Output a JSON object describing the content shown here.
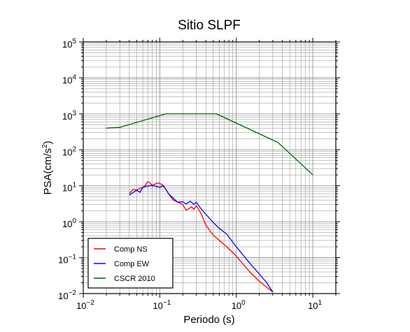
{
  "chart_data": {
    "type": "line",
    "title": "Sitio SLPF",
    "xlabel": "Periodo (s)",
    "ylabel_prefix": "PSA(cm/s",
    "ylabel_sup": "2",
    "ylabel_suffix": ")",
    "x_scale": "log",
    "y_scale": "log",
    "xlim": [
      0.01,
      20
    ],
    "ylim": [
      0.01,
      100000
    ],
    "grid": true,
    "legend_position": "bottom-left",
    "x_ticks": [
      {
        "value": 0.01,
        "base": "10",
        "exp": "−2"
      },
      {
        "value": 0.1,
        "base": "10",
        "exp": "−1"
      },
      {
        "value": 1,
        "base": "10",
        "exp": "0"
      },
      {
        "value": 10,
        "base": "10",
        "exp": "1"
      }
    ],
    "y_ticks": [
      {
        "value": 0.01,
        "base": "10",
        "exp": "−2"
      },
      {
        "value": 0.1,
        "base": "10",
        "exp": "−1"
      },
      {
        "value": 1,
        "base": "10",
        "exp": "0"
      },
      {
        "value": 10,
        "base": "10",
        "exp": "1"
      },
      {
        "value": 100,
        "base": "10",
        "exp": "2"
      },
      {
        "value": 1000,
        "base": "10",
        "exp": "3"
      },
      {
        "value": 10000,
        "base": "10",
        "exp": "4"
      },
      {
        "value": 100000,
        "base": "10",
        "exp": "5"
      }
    ],
    "series": [
      {
        "name": "Comp NS",
        "color": "#ff0000",
        "x": [
          0.04,
          0.045,
          0.05,
          0.055,
          0.06,
          0.065,
          0.07,
          0.075,
          0.08,
          0.085,
          0.09,
          0.095,
          0.1,
          0.11,
          0.12,
          0.13,
          0.15,
          0.17,
          0.19,
          0.2,
          0.22,
          0.24,
          0.26,
          0.28,
          0.3,
          0.35,
          0.4,
          0.5,
          0.6,
          0.75,
          1.0,
          1.5,
          2.0,
          2.5,
          3.0
        ],
        "y": [
          6.0,
          8.0,
          7.5,
          8.5,
          9.0,
          10.5,
          13.0,
          12.0,
          9.5,
          11.0,
          11.5,
          12.0,
          11.5,
          10.5,
          8.0,
          6.0,
          4.0,
          3.5,
          3.2,
          3.0,
          2.1,
          2.3,
          2.6,
          2.2,
          2.8,
          1.6,
          0.8,
          0.42,
          0.3,
          0.2,
          0.11,
          0.04,
          0.022,
          0.015,
          0.011
        ]
      },
      {
        "name": "Comp EW",
        "color": "#0000ff",
        "x": [
          0.04,
          0.045,
          0.05,
          0.055,
          0.06,
          0.065,
          0.07,
          0.075,
          0.08,
          0.085,
          0.09,
          0.1,
          0.11,
          0.12,
          0.13,
          0.15,
          0.17,
          0.2,
          0.22,
          0.25,
          0.28,
          0.3,
          0.35,
          0.4,
          0.5,
          0.6,
          0.75,
          1.0,
          1.5,
          2.0,
          2.5,
          3.0
        ],
        "y": [
          5.5,
          6.5,
          7.5,
          6.5,
          9.0,
          9.5,
          9.8,
          10.0,
          10.5,
          10.0,
          9.5,
          9.0,
          10.0,
          8.0,
          6.0,
          4.5,
          3.5,
          3.6,
          3.1,
          3.7,
          3.0,
          3.5,
          2.2,
          1.6,
          0.95,
          0.65,
          0.45,
          0.2,
          0.07,
          0.035,
          0.02,
          0.011
        ]
      },
      {
        "name": "CSCR 2010",
        "color": "#006400",
        "x": [
          0.02,
          0.03,
          0.12,
          0.55,
          3.5,
          10.0
        ],
        "y": [
          400,
          420,
          1000,
          1000,
          160,
          20
        ]
      }
    ]
  }
}
